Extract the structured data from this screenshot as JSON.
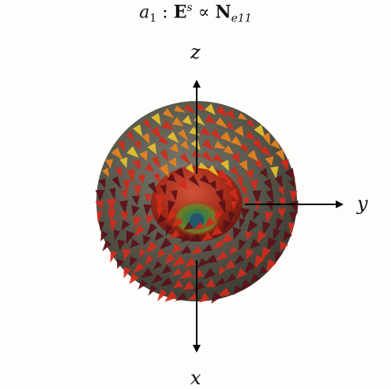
{
  "title": {
    "coef": "a",
    "coef_sub": "1",
    "sep": " : ",
    "field": "E",
    "field_sup": "s",
    "relation": " ∝ ",
    "basis": "N",
    "basis_sub": "e11"
  },
  "axes": {
    "z": "z",
    "y": "y",
    "x": "x"
  },
  "colors": {
    "background": "#fdfdfb",
    "sphere": "#5a5a52",
    "inner_lobe": "#b8341c",
    "arrow_dark": "#5c1018",
    "arrow_red": "#d42a1a",
    "arrow_orange": "#e8821c",
    "arrow_yellow": "#e8c22a",
    "axis": "#000000"
  }
}
